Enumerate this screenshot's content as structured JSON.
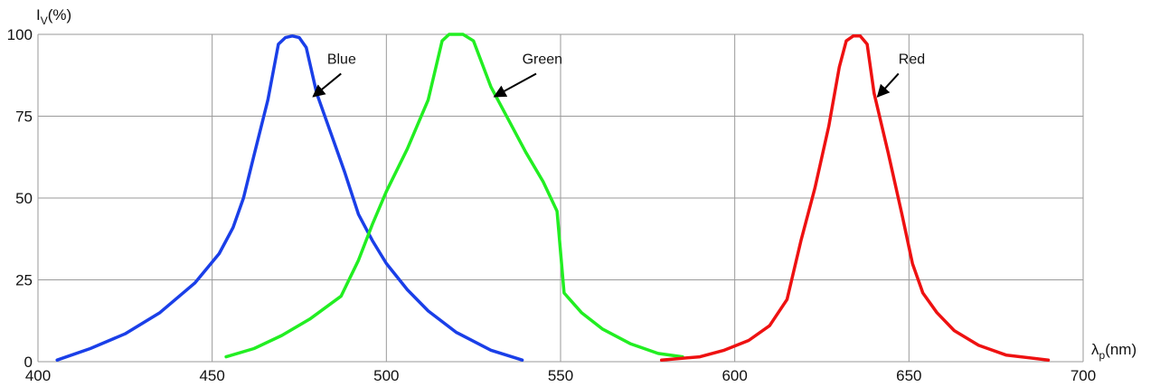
{
  "chart_data": {
    "type": "line",
    "title": "",
    "ylabel": {
      "main": "I",
      "sub": "V",
      "unit": "(%)"
    },
    "xlabel": {
      "main": "λ",
      "sub": "p",
      "unit": "(nm)"
    },
    "xlim": [
      400,
      700
    ],
    "ylim": [
      0,
      100
    ],
    "x_ticks": [
      400,
      450,
      500,
      550,
      600,
      650,
      700
    ],
    "y_ticks": [
      0,
      25,
      50,
      75,
      100
    ],
    "grid": true,
    "legend": "none",
    "series": [
      {
        "name": "Blue",
        "color": "#1a3fe8",
        "points": [
          [
            405.5,
            0.5
          ],
          [
            415,
            4
          ],
          [
            425,
            8.5
          ],
          [
            435,
            15
          ],
          [
            445,
            24
          ],
          [
            452,
            33
          ],
          [
            456,
            41
          ],
          [
            459,
            50
          ],
          [
            462,
            63
          ],
          [
            466,
            80
          ],
          [
            469,
            97
          ],
          [
            471,
            99
          ],
          [
            473,
            99.5
          ],
          [
            475,
            99
          ],
          [
            477,
            96
          ],
          [
            480,
            82
          ],
          [
            484,
            70
          ],
          [
            488,
            58
          ],
          [
            492,
            45
          ],
          [
            496,
            37
          ],
          [
            500,
            30
          ],
          [
            506,
            22
          ],
          [
            512,
            15.5
          ],
          [
            520,
            9
          ],
          [
            530,
            3.5
          ],
          [
            539,
            0.5
          ]
        ]
      },
      {
        "name": "Green",
        "color": "#22ee22",
        "points": [
          [
            454,
            1.5
          ],
          [
            462,
            4
          ],
          [
            470,
            8
          ],
          [
            478,
            13
          ],
          [
            487,
            20
          ],
          [
            492,
            31
          ],
          [
            496,
            42
          ],
          [
            500,
            52
          ],
          [
            506,
            65
          ],
          [
            512,
            80
          ],
          [
            516,
            98
          ],
          [
            518,
            100
          ],
          [
            522,
            100
          ],
          [
            525,
            98
          ],
          [
            530,
            84
          ],
          [
            535,
            74
          ],
          [
            540,
            64
          ],
          [
            545,
            55
          ],
          [
            549,
            46
          ],
          [
            551,
            21
          ],
          [
            556,
            15
          ],
          [
            562,
            10
          ],
          [
            570,
            5.5
          ],
          [
            578,
            2.5
          ],
          [
            585,
            1.5
          ]
        ]
      },
      {
        "name": "Red",
        "color": "#ee1111",
        "points": [
          [
            579,
            0.5
          ],
          [
            590,
            1.5
          ],
          [
            597,
            3.5
          ],
          [
            604,
            6.5
          ],
          [
            610,
            11
          ],
          [
            615,
            19
          ],
          [
            619,
            37
          ],
          [
            623,
            53
          ],
          [
            627,
            72
          ],
          [
            630,
            90
          ],
          [
            632,
            98
          ],
          [
            634,
            99.5
          ],
          [
            636,
            99.5
          ],
          [
            638,
            97
          ],
          [
            640,
            82
          ],
          [
            644,
            64
          ],
          [
            648,
            45
          ],
          [
            651,
            30
          ],
          [
            654,
            21
          ],
          [
            658,
            15
          ],
          [
            663,
            9.5
          ],
          [
            670,
            5
          ],
          [
            678,
            2
          ],
          [
            690,
            0.5
          ]
        ]
      }
    ],
    "annotations": [
      {
        "text": "Blue",
        "series": "Blue",
        "text_at": [
          483,
          91
        ],
        "arrow_from": [
          487,
          88
        ],
        "arrow_to": [
          479,
          81
        ]
      },
      {
        "text": "Green",
        "series": "Green",
        "text_at": [
          539,
          91
        ],
        "arrow_from": [
          543,
          88
        ],
        "arrow_to": [
          531,
          81
        ]
      },
      {
        "text": "Red",
        "series": "Red",
        "text_at": [
          647,
          91
        ],
        "arrow_from": [
          647,
          88
        ],
        "arrow_to": [
          641,
          81
        ]
      }
    ]
  }
}
